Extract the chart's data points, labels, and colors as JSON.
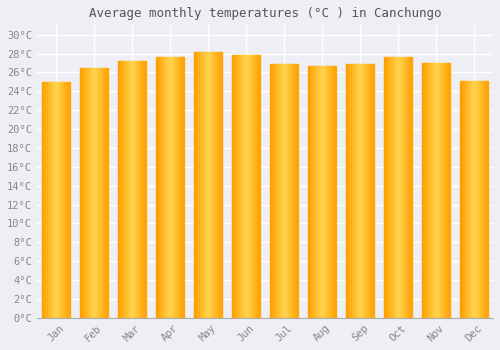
{
  "title": "Average monthly temperatures (°C ) in Canchungo",
  "months": [
    "Jan",
    "Feb",
    "Mar",
    "Apr",
    "May",
    "Jun",
    "Jul",
    "Aug",
    "Sep",
    "Oct",
    "Nov",
    "Dec"
  ],
  "values": [
    25.0,
    26.5,
    27.2,
    27.6,
    28.2,
    27.9,
    26.9,
    26.7,
    26.9,
    27.6,
    27.0,
    25.1
  ],
  "bar_color_center": "#FFD54F",
  "bar_color_edge": "#FFA000",
  "background_color": "#EEEEF5",
  "plot_bg_color": "#EEEEF5",
  "grid_color": "#FFFFFF",
  "title_color": "#555555",
  "tick_color": "#888888",
  "ytick_labels": [
    "0°C",
    "2°C",
    "4°C",
    "6°C",
    "8°C",
    "10°C",
    "12°C",
    "14°C",
    "16°C",
    "18°C",
    "20°C",
    "22°C",
    "24°C",
    "26°C",
    "28°C",
    "30°C"
  ],
  "ytick_values": [
    0,
    2,
    4,
    6,
    8,
    10,
    12,
    14,
    16,
    18,
    20,
    22,
    24,
    26,
    28,
    30
  ],
  "ylim": [
    0,
    31
  ],
  "title_fontsize": 9,
  "tick_fontsize": 7.5,
  "font_family": "monospace"
}
